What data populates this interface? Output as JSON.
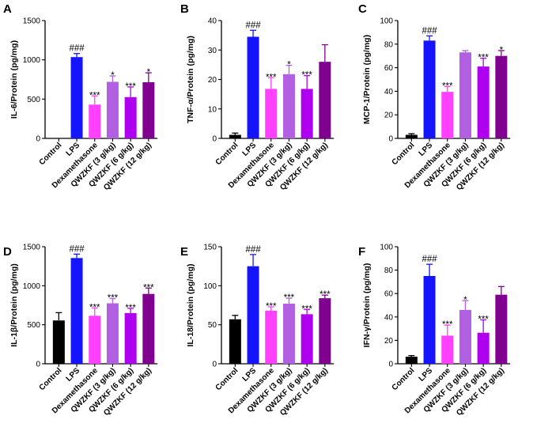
{
  "chart_data": [
    {
      "type": "bar",
      "letter": "A",
      "ylabel": "IL-6/Protein (pg/mg)",
      "ylim": [
        0,
        1500
      ],
      "yticks": [
        "0",
        "500",
        "1000",
        "1500"
      ],
      "categories": [
        "Control",
        "LPS",
        "Dexamethasone",
        "QWZKF (3 g/kg)",
        "QWZKF (6 g/kg)",
        "QWZKF (12 g/kg)"
      ],
      "values": [
        0,
        1035,
        430,
        720,
        525,
        715
      ],
      "errors": [
        0,
        45,
        110,
        75,
        130,
        120
      ],
      "labels": [
        "",
        "###",
        "***",
        "*",
        "***",
        "*"
      ],
      "colors": [
        "#000000",
        "#1414ff",
        "#ff40ff",
        "#b060e0",
        "#b000f0",
        "#800090"
      ]
    },
    {
      "type": "bar",
      "letter": "B",
      "ylabel": "TNF-α/Protein (pg/mg)",
      "ylim": [
        0,
        40
      ],
      "yticks": [
        "0",
        "10",
        "20",
        "30",
        "40"
      ],
      "categories": [
        "Control",
        "LPS",
        "Dexamethasone",
        "QWZKF (3 g/kg)",
        "QWZKF (6 g/kg)",
        "QWZKF (12 g/kg)"
      ],
      "values": [
        1.2,
        34.5,
        16.8,
        21.8,
        16.8,
        26
      ],
      "errors": [
        0.6,
        2.2,
        3.8,
        3,
        4.5,
        5.8
      ],
      "labels": [
        "",
        "###",
        "***",
        "*",
        "***",
        ""
      ],
      "colors": [
        "#000000",
        "#1414ff",
        "#ff40ff",
        "#b060e0",
        "#b000f0",
        "#800090"
      ]
    },
    {
      "type": "bar",
      "letter": "C",
      "ylabel": "MCP-1/Protein (pg/mg)",
      "ylim": [
        0,
        100
      ],
      "yticks": [
        "0",
        "20",
        "40",
        "60",
        "80",
        "100"
      ],
      "categories": [
        "Control",
        "LPS",
        "Dexamethasone",
        "QWZKF (3 g/kg)",
        "QWZKF (6 g/kg)",
        "QWZKF (12 g/kg)"
      ],
      "values": [
        3,
        83,
        39.5,
        73,
        61,
        70
      ],
      "errors": [
        1,
        4,
        4.5,
        1.5,
        7,
        4.5
      ],
      "labels": [
        "",
        "###",
        "***",
        "",
        "***",
        "*"
      ],
      "colors": [
        "#000000",
        "#1414ff",
        "#ff40ff",
        "#b060e0",
        "#b000f0",
        "#800090"
      ]
    },
    {
      "type": "bar",
      "letter": "D",
      "ylabel": "IL-1β/Protein (pg/mg)",
      "ylim": [
        0,
        1500
      ],
      "yticks": [
        "0",
        "500",
        "1000",
        "1500"
      ],
      "categories": [
        "Control",
        "LPS",
        "Dexamethasone",
        "QWZKF (3 g/kg)",
        "QWZKF (6 g/kg)",
        "QWZKF (12 g/kg)"
      ],
      "values": [
        555,
        1355,
        615,
        775,
        650,
        895
      ],
      "errors": [
        100,
        50,
        100,
        60,
        60,
        75
      ],
      "labels": [
        "",
        "###",
        "***",
        "***",
        "***",
        "***"
      ],
      "colors": [
        "#000000",
        "#1414ff",
        "#ff40ff",
        "#b060e0",
        "#b000f0",
        "#800090"
      ]
    },
    {
      "type": "bar",
      "letter": "E",
      "ylabel": "IL-18/Protein (pg/mg)",
      "ylim": [
        0,
        150
      ],
      "yticks": [
        "0",
        "50",
        "100",
        "150"
      ],
      "categories": [
        "Control",
        "LPS",
        "Dexamethasone",
        "QWZKF (3 g/kg)",
        "QWZKF (6 g/kg)",
        "QWZKF (12 g/kg)"
      ],
      "values": [
        57,
        125,
        68,
        77,
        63.5,
        84
      ],
      "errors": [
        5,
        15,
        5,
        7,
        6,
        4
      ],
      "labels": [
        "",
        "###",
        "***",
        "***",
        "***",
        "***"
      ],
      "colors": [
        "#000000",
        "#1414ff",
        "#ff40ff",
        "#b060e0",
        "#b000f0",
        "#800090"
      ]
    },
    {
      "type": "bar",
      "letter": "F",
      "ylabel": "IFN-γ/Protein (pg/mg)",
      "ylim": [
        0,
        100
      ],
      "yticks": [
        "0",
        "20",
        "40",
        "60",
        "80",
        "100"
      ],
      "categories": [
        "Control",
        "LPS",
        "Dexamethasone",
        "QWZKF (3 g/kg)",
        "QWZKF (6 g/kg)",
        "QWZKF (12 g/kg)"
      ],
      "values": [
        6,
        75,
        24,
        46,
        26.5,
        59
      ],
      "errors": [
        1,
        10,
        9,
        8,
        11,
        7
      ],
      "labels": [
        "",
        "###",
        "***",
        "*",
        "***",
        ""
      ],
      "colors": [
        "#000000",
        "#1414ff",
        "#ff40ff",
        "#b060e0",
        "#b000f0",
        "#800090"
      ]
    }
  ]
}
